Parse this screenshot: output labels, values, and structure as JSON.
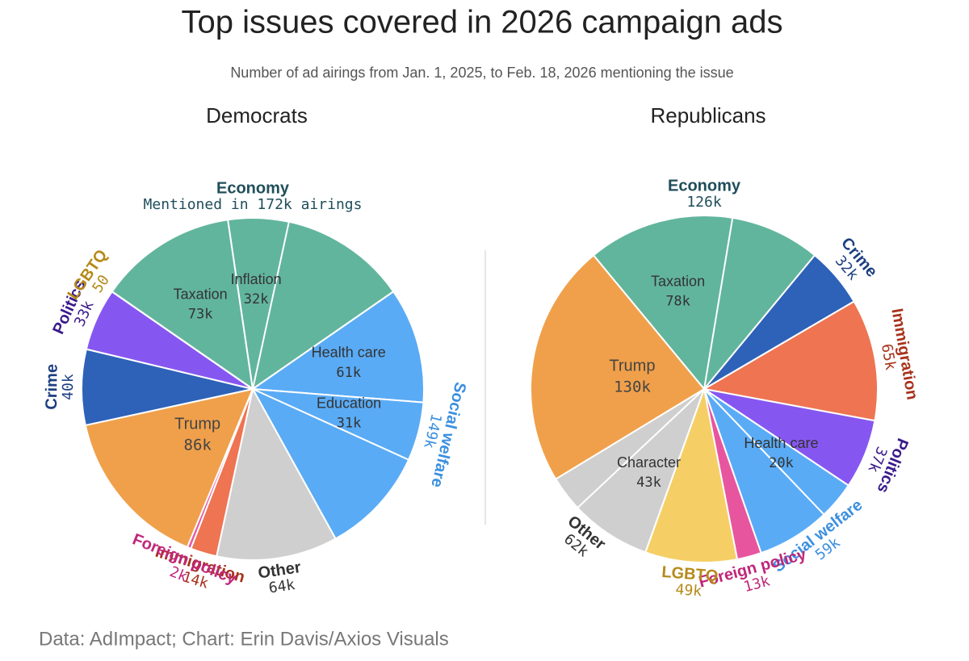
{
  "header": {
    "title": "Top issues covered in 2026 campaign ads",
    "subtitle": "Number of ad airings from Jan. 1, 2025, to Feb. 18, 2026 mentioning the issue"
  },
  "source": "Data: AdImpact; Chart: Erin Davis/Axios Visuals",
  "chart_data": [
    {
      "type": "voronoi-treemap",
      "title": "Democrats",
      "groups": [
        {
          "name": "Economy",
          "value": 172000,
          "value_label": "Mentioned in 172k airings",
          "color": "#62b59d",
          "label_color": "#1f4e5a",
          "subgroups": [
            {
              "name": "Taxation",
              "value": 73000,
              "value_label": "73k"
            },
            {
              "name": "Inflation",
              "value": 32000,
              "value_label": "32k"
            }
          ]
        },
        {
          "name": "Social welfare",
          "value": 149000,
          "value_label": "149k",
          "color": "#5aabf5",
          "label_color": "#3b8fe0",
          "subgroups": [
            {
              "name": "Health care",
              "value": 61000,
              "value_label": "61k"
            },
            {
              "name": "Education",
              "value": 31000,
              "value_label": "31k"
            }
          ]
        },
        {
          "name": "Other",
          "value": 64000,
          "value_label": "64k",
          "color": "#cfcfcf",
          "label_color": "#333333"
        },
        {
          "name": "Immigration",
          "value": 14000,
          "value_label": "14k",
          "color": "#ee7452",
          "label_color": "#a8321c"
        },
        {
          "name": "Foreign policy",
          "value": 2000,
          "value_label": "2k",
          "color": "#e8559f",
          "label_color": "#c0267a"
        },
        {
          "name": "Trump",
          "value": 86000,
          "value_label": "86k",
          "color": "#f0a04b",
          "label_color": "#444444",
          "label_position": "inside"
        },
        {
          "name": "Crime",
          "value": 40000,
          "value_label": "40k",
          "color": "#2d62b8",
          "label_color": "#1d3f80"
        },
        {
          "name": "Politics",
          "value": 33000,
          "value_label": "33k",
          "color": "#8657f0",
          "label_color": "#3a1a8a"
        },
        {
          "name": "LGBTQ",
          "value": 50,
          "color": "#f5cf66",
          "label_color": "#b58a1a"
        }
      ]
    },
    {
      "type": "voronoi-treemap",
      "title": "Republicans",
      "groups": [
        {
          "name": "Economy",
          "value": 126000,
          "value_label": "126k",
          "color": "#62b59d",
          "label_color": "#1f4e5a",
          "subgroups": [
            {
              "name": "Taxation",
              "value": 78000,
              "value_label": "78k"
            }
          ]
        },
        {
          "name": "Crime",
          "value": 32000,
          "value_label": "32k",
          "color": "#2d62b8",
          "label_color": "#1d3f80"
        },
        {
          "name": "Immigration",
          "value": 65000,
          "value_label": "65k",
          "color": "#ee7452",
          "label_color": "#a8321c"
        },
        {
          "name": "Politics",
          "value": 37000,
          "value_label": "37k",
          "color": "#8657f0",
          "label_color": "#3a1a8a"
        },
        {
          "name": "Social welfare",
          "value": 59000,
          "value_label": "59k",
          "color": "#5aabf5",
          "label_color": "#3b8fe0",
          "subgroups": [
            {
              "name": "Health care",
              "value": 20000,
              "value_label": "20k"
            }
          ]
        },
        {
          "name": "Foreign policy",
          "value": 13000,
          "value_label": "13k",
          "color": "#e8559f",
          "label_color": "#c0267a"
        },
        {
          "name": "LGBTQ",
          "value": 49000,
          "value_label": "49k",
          "color": "#f5cf66",
          "label_color": "#b58a1a"
        },
        {
          "name": "Other",
          "value": 62000,
          "value_label": "62k",
          "color": "#cfcfcf",
          "label_color": "#333333",
          "subgroups": [
            {
              "name": "Character",
              "value": 43000,
              "value_label": "43k"
            }
          ]
        },
        {
          "name": "Trump",
          "value": 130000,
          "value_label": "130k",
          "color": "#f0a04b",
          "label_color": "#444444",
          "label_position": "inside"
        }
      ]
    }
  ]
}
